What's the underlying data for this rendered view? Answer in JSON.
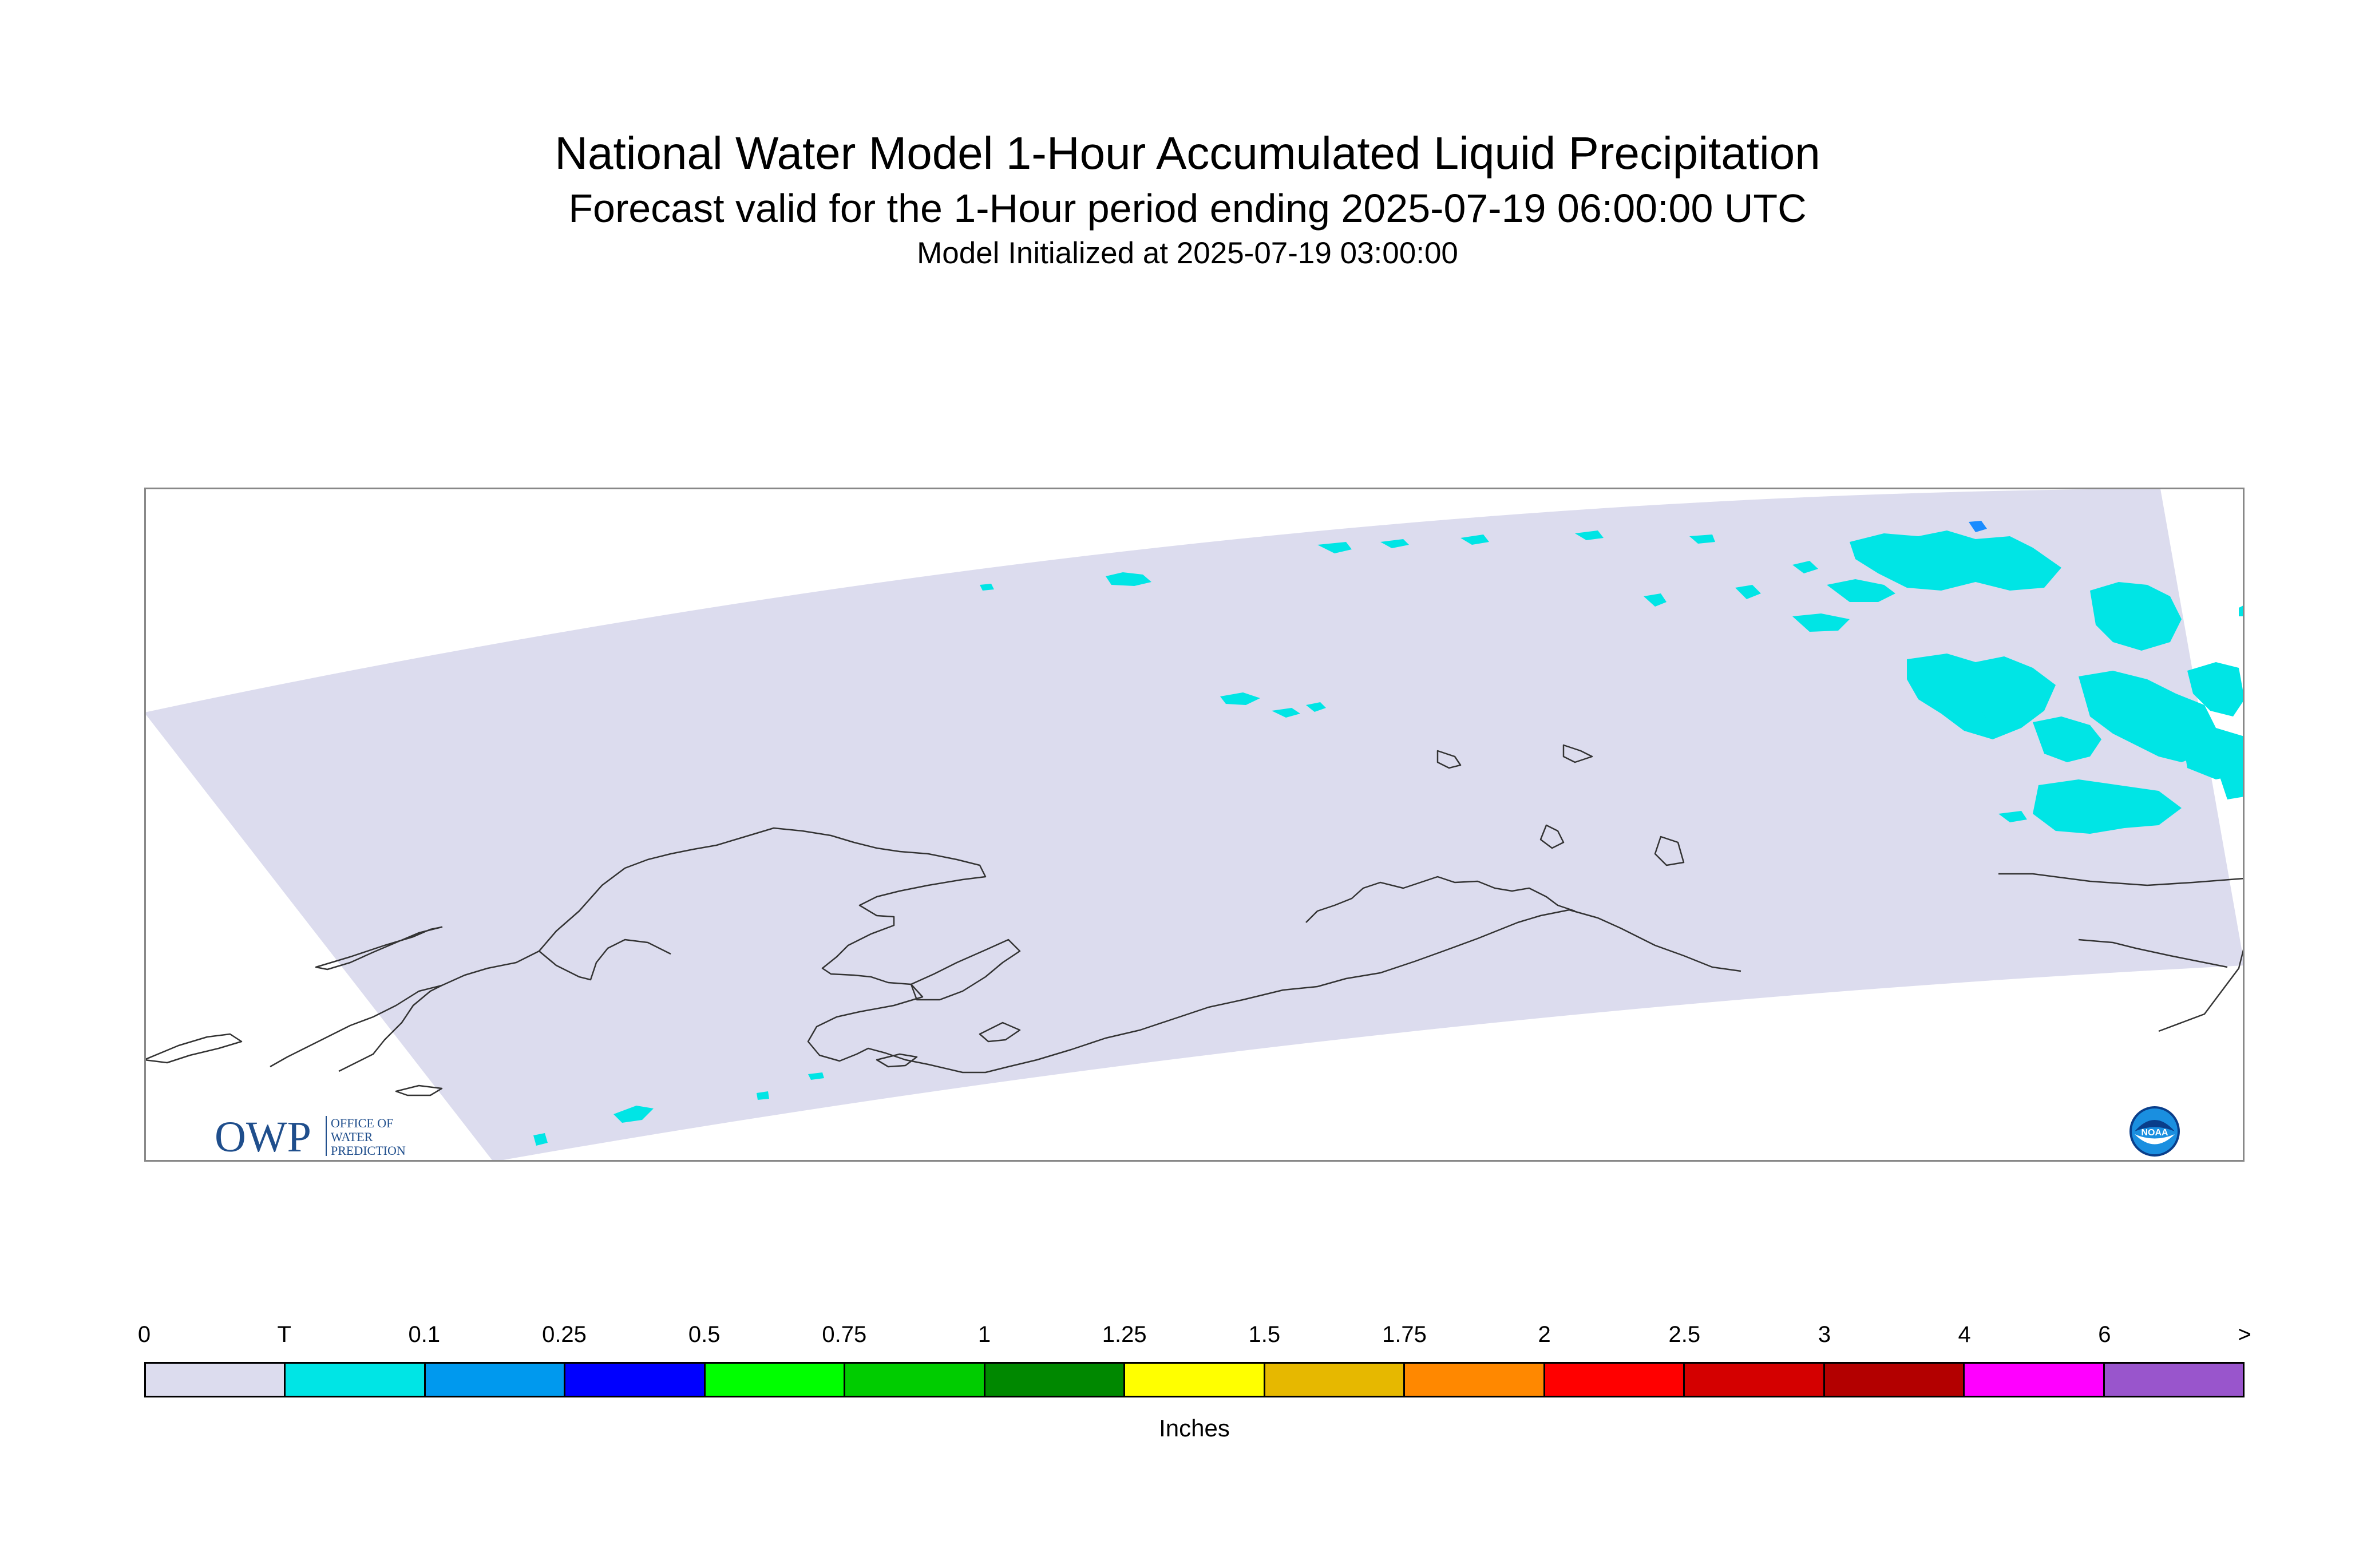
{
  "title": "National Water Model 1-Hour Accumulated Liquid Precipitation",
  "subtitle": "Forecast valid for the 1-Hour period ending 2025-07-19 06:00:00 UTC",
  "init_line": "Model Initialized at 2025-07-19 03:00:00",
  "map": {
    "region": "Alaska",
    "domain_color": "#dcdcee",
    "precip_color_trace": "#00e5e5",
    "precip_color_light": "#1a8cff",
    "coast_color": "#333333"
  },
  "logos": {
    "owp": {
      "mark": "OWP",
      "line1": "OFFICE OF",
      "line2": "WATER",
      "line3": "PREDICTION"
    },
    "noaa": {
      "text": "NOAA"
    }
  },
  "legend": {
    "ticks": [
      "0",
      "T",
      "0.1",
      "0.25",
      "0.5",
      "0.75",
      "1",
      "1.25",
      "1.5",
      "1.75",
      "2",
      "2.5",
      "3",
      "4",
      "6",
      ">"
    ],
    "colors": [
      "#dcdcee",
      "#00e5e5",
      "#0099ee",
      "#0000ff",
      "#00ff00",
      "#00cc00",
      "#008800",
      "#ffff00",
      "#e6b800",
      "#ff8800",
      "#ff0000",
      "#d40000",
      "#b30000",
      "#ff00ff",
      "#9955cc"
    ],
    "unit": "Inches"
  }
}
